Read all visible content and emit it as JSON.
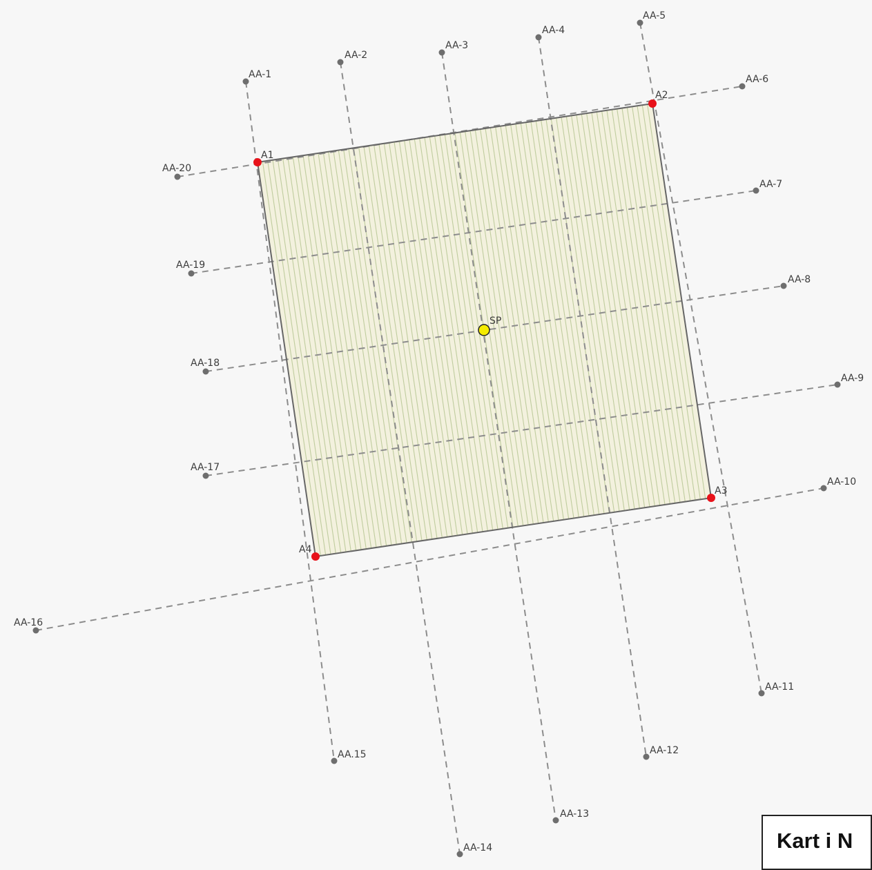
{
  "map": {
    "corners": [
      {
        "id": "A1",
        "label": "A1"
      },
      {
        "id": "A2",
        "label": "A2"
      },
      {
        "id": "A3",
        "label": "A3"
      },
      {
        "id": "A4",
        "label": "A4"
      }
    ],
    "center": {
      "label": "SP"
    },
    "profile_ends": [
      {
        "label": "AA-1"
      },
      {
        "label": "AA-2"
      },
      {
        "label": "AA-3"
      },
      {
        "label": "AA-4"
      },
      {
        "label": "AA-5"
      },
      {
        "label": "AA-6"
      },
      {
        "label": "AA-7"
      },
      {
        "label": "AA-8"
      },
      {
        "label": "AA-9"
      },
      {
        "label": "AA-10"
      },
      {
        "label": "AA-11"
      },
      {
        "label": "AA-12"
      },
      {
        "label": "AA-13"
      },
      {
        "label": "AA-14"
      },
      {
        "label": "AA.15"
      },
      {
        "label": "AA-16"
      },
      {
        "label": "AA-17"
      },
      {
        "label": "AA-18"
      },
      {
        "label": "AA-19"
      },
      {
        "label": "AA-20"
      }
    ],
    "colors": {
      "background": "#f7f7f7",
      "area_fill": "#f3f1de",
      "hatch": "#bfcc9e",
      "outline": "#666666",
      "corner_point": "#e8121a",
      "center_point": "#f5ec00",
      "profile_line": "#8c8c8c",
      "profile_point": "#6e6e6e"
    }
  },
  "legend_box": {
    "title": "Kart i N"
  }
}
